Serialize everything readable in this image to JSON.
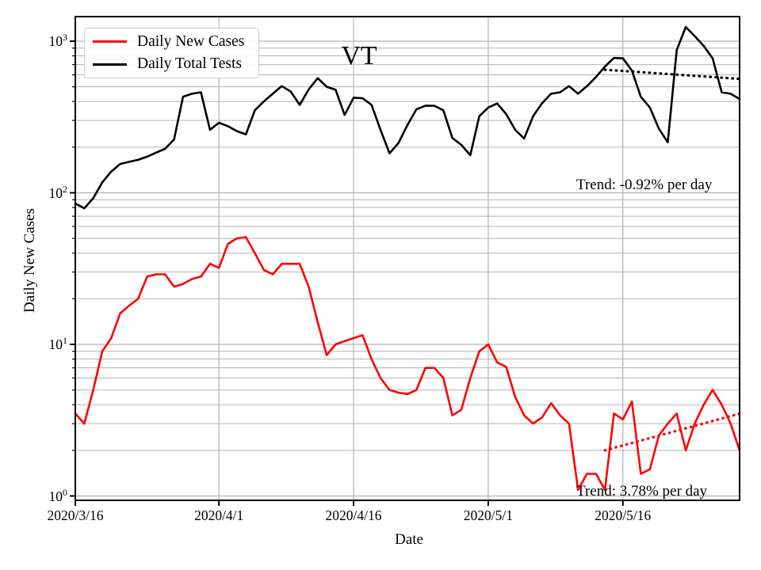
{
  "figure": {
    "background": "#ffffff",
    "plot_background": "#ffffff",
    "spine_color": "#000000"
  },
  "chart_data": {
    "type": "line",
    "title": "VT",
    "xlabel": "Date",
    "ylabel": "Daily New Cases",
    "y_scale": "log",
    "ylim": [
      0.95,
      1470
    ],
    "xlim": [
      "2020/3/16",
      "2020/5/29"
    ],
    "grid": true,
    "grid_color": "#b3b3b3",
    "legend_position": "upper left",
    "x_tick_labels": [
      "2020/3/16",
      "2020/4/1",
      "2020/4/16",
      "2020/5/1",
      "2020/5/16"
    ],
    "x_tick_days": [
      0,
      16,
      31,
      46,
      61
    ],
    "y_tick_exponents": [
      0,
      1,
      2,
      3
    ],
    "x_start_date": "2020/3/16",
    "x_unit": "1 day per point",
    "series": [
      {
        "name": "Daily New Cases",
        "color": "#ff0000",
        "values": [
          3.5,
          3,
          5,
          9,
          11,
          16,
          18,
          20,
          28,
          29,
          29,
          24,
          25,
          27,
          28,
          34,
          32,
          46,
          50,
          51,
          40,
          31,
          29,
          34,
          34,
          34,
          24,
          14,
          8.5,
          10,
          10.5,
          11,
          11.5,
          8,
          6,
          5,
          4.8,
          4.7,
          5,
          7,
          7,
          6,
          3.4,
          3.7,
          6,
          9,
          10,
          7.6,
          7.1,
          4.5,
          3.4,
          3,
          3.3,
          4.1,
          3.4,
          3,
          1.1,
          1.4,
          1.4,
          1.1,
          3.5,
          3.2,
          4.2,
          1.4,
          1.5,
          2.5,
          3,
          3.5,
          2,
          3,
          4,
          5,
          4,
          3,
          2
        ]
      },
      {
        "name": "Daily Total Tests",
        "color": "#000000",
        "values": [
          85,
          79,
          92,
          117,
          138,
          155,
          160,
          165,
          173,
          184,
          195,
          225,
          430,
          450,
          460,
          260,
          290,
          275,
          255,
          243,
          350,
          400,
          450,
          505,
          465,
          380,
          480,
          570,
          500,
          478,
          326,
          424,
          420,
          380,
          260,
          182,
          213,
          280,
          355,
          375,
          375,
          350,
          230,
          207,
          177,
          320,
          365,
          388,
          330,
          260,
          228,
          320,
          390,
          450,
          460,
          505,
          450,
          505,
          580,
          680,
          775,
          770,
          640,
          430,
          365,
          265,
          215,
          875,
          1240,
          1080,
          930,
          770,
          460,
          450,
          415
        ]
      }
    ],
    "trend_lines": [
      {
        "name": "tests-trend",
        "label": "Trend: -0.92% per day",
        "color": "#000000",
        "rate_percent_per_day": -0.92,
        "day_start": 59,
        "day_end": 74,
        "value_start": 648,
        "value_end": 564
      },
      {
        "name": "cases-trend",
        "label": "Trend: 3.78% per day",
        "color": "#ff0000",
        "rate_percent_per_day": 3.78,
        "day_start": 59,
        "day_end": 74,
        "value_start": 2.0,
        "value_end": 3.49
      }
    ]
  }
}
